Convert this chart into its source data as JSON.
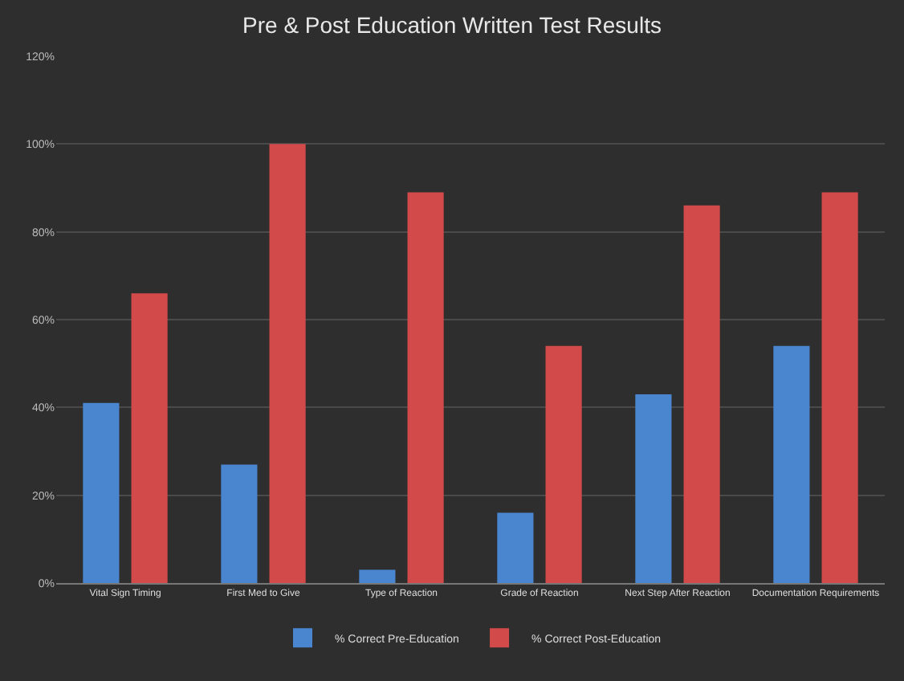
{
  "chart_data": {
    "type": "bar",
    "title": "Pre & Post Education Written Test Results",
    "categories": [
      "Vital Sign Timing",
      "First Med to Give",
      "Type of Reaction",
      "Grade of Reaction",
      "Next Step After Reaction",
      "Documentation Requirements"
    ],
    "series": [
      {
        "name": "% Correct Pre-Education",
        "color": "#4a86d0",
        "values": [
          41,
          27,
          3,
          16,
          43,
          54
        ]
      },
      {
        "name": "% Correct Post-Education",
        "color": "#d24a4a",
        "values": [
          66,
          100,
          89,
          54,
          86,
          89
        ]
      }
    ],
    "ylim": [
      0,
      120
    ],
    "yticks": [
      {
        "value": 0,
        "label": "0%"
      },
      {
        "value": 20,
        "label": "20%"
      },
      {
        "value": 40,
        "label": "40%"
      },
      {
        "value": 60,
        "label": "60%"
      },
      {
        "value": 80,
        "label": "80%"
      },
      {
        "value": 100,
        "label": "100%"
      },
      {
        "value": 120,
        "label": "120%"
      }
    ],
    "grid": "y",
    "legend": "bottom"
  }
}
